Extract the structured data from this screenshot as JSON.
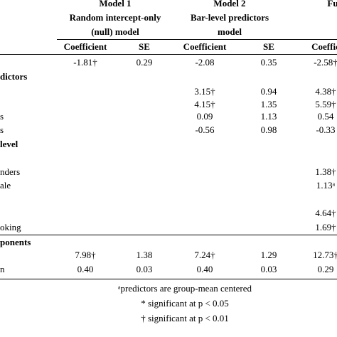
{
  "table": {
    "model_headers": [
      [
        "Model 1",
        "Random intercept-only",
        "(null) model"
      ],
      [
        "Model 2",
        "Bar-level predictors",
        "model"
      ],
      [
        "Fu"
      ]
    ],
    "columns": [
      "Coefficient",
      "SE",
      "Coefficient",
      "SE",
      "Coeffic"
    ],
    "rows": [
      {
        "label": null,
        "cells": [
          "-1.81†",
          "0.29",
          "-2.08",
          "0.35",
          "-2.58†"
        ]
      },
      {
        "label": "dictors",
        "section": true,
        "cells": []
      },
      {
        "label": null,
        "cells": [
          null,
          null,
          "3.15†",
          "0.94",
          "4.38†"
        ]
      },
      {
        "label": null,
        "cells": [
          null,
          null,
          "4.15†",
          "1.35",
          "5.59†"
        ]
      },
      {
        "label": "s",
        "cells": [
          null,
          null,
          "0.09",
          "1.13",
          "0.54"
        ]
      },
      {
        "label": "s",
        "cells": [
          null,
          null,
          "-0.56",
          "0.98",
          "-0.33"
        ]
      },
      {
        "label": "level",
        "section": true,
        "cells": []
      },
      {
        "label": null,
        "cells": []
      },
      {
        "label": "nders",
        "cells": [
          null,
          null,
          null,
          null,
          "1.38†"
        ]
      },
      {
        "label": "ale",
        "cells": [
          null,
          null,
          null,
          null,
          "1.13ᵃ"
        ]
      },
      {
        "label": null,
        "cells": []
      },
      {
        "label": null,
        "cells": [
          null,
          null,
          null,
          null,
          "4.64†"
        ]
      },
      {
        "label": "oking",
        "cells": [
          null,
          null,
          null,
          null,
          "1.69†"
        ]
      },
      {
        "label": "ponents",
        "section": true,
        "cells": []
      },
      {
        "label": null,
        "cells": [
          "7.98†",
          "1.38",
          "7.24†",
          "1.29",
          "12.73†"
        ]
      },
      {
        "label": "n",
        "cells": [
          "0.40",
          "0.03",
          "0.40",
          "0.03",
          "0.29"
        ]
      }
    ],
    "footnotes": [
      "ᵃpredictors are group-mean centered",
      "* significant at p < 0.05",
      "† significant at p < 0.01"
    ]
  }
}
